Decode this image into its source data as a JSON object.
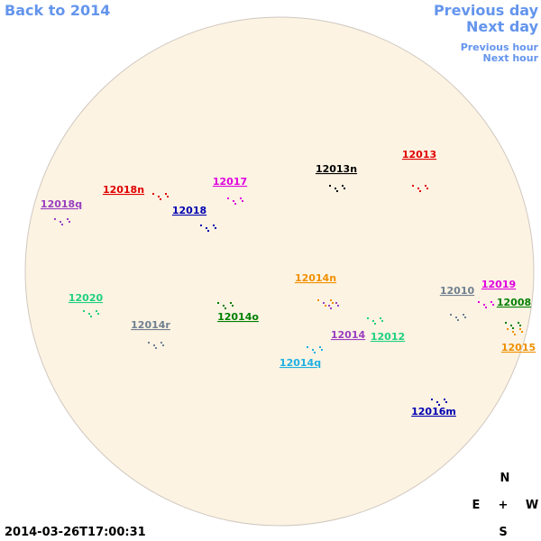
{
  "nav": {
    "back": "Back to 2014",
    "prev_day": "Previous day",
    "next_day": "Next day",
    "prev_hour": "Previous hour",
    "next_hour": "Next hour"
  },
  "regions": [
    {
      "label": "12013",
      "color": "#e00000"
    },
    {
      "label": "12013n",
      "color": "#000000"
    },
    {
      "label": "12018n",
      "color": "#e00000"
    },
    {
      "label": "12017",
      "color": "#e000e0"
    },
    {
      "label": "12018q",
      "color": "#9a3fc0"
    },
    {
      "label": "12018",
      "color": "#0000b0"
    },
    {
      "label": "12014n",
      "color": "#f09000"
    },
    {
      "label": "12020",
      "color": "#20d080"
    },
    {
      "label": "12010",
      "color": "#708090"
    },
    {
      "label": "12019",
      "color": "#e000e0"
    },
    {
      "label": "12008",
      "color": "#008000"
    },
    {
      "label": "12014o",
      "color": "#008000"
    },
    {
      "label": "12014r",
      "color": "#708090"
    },
    {
      "label": "12014",
      "color": "#9a3fc0"
    },
    {
      "label": "12012",
      "color": "#20d080"
    },
    {
      "label": "12015",
      "color": "#f09000"
    },
    {
      "label": "12014q",
      "color": "#20b0e0"
    },
    {
      "label": "12016m",
      "color": "#0000b0"
    }
  ],
  "compass": {
    "north": "N",
    "east": "E",
    "center": "+",
    "west": "W",
    "south": "S"
  },
  "timestamp": "2014-03-26T17:00:31"
}
